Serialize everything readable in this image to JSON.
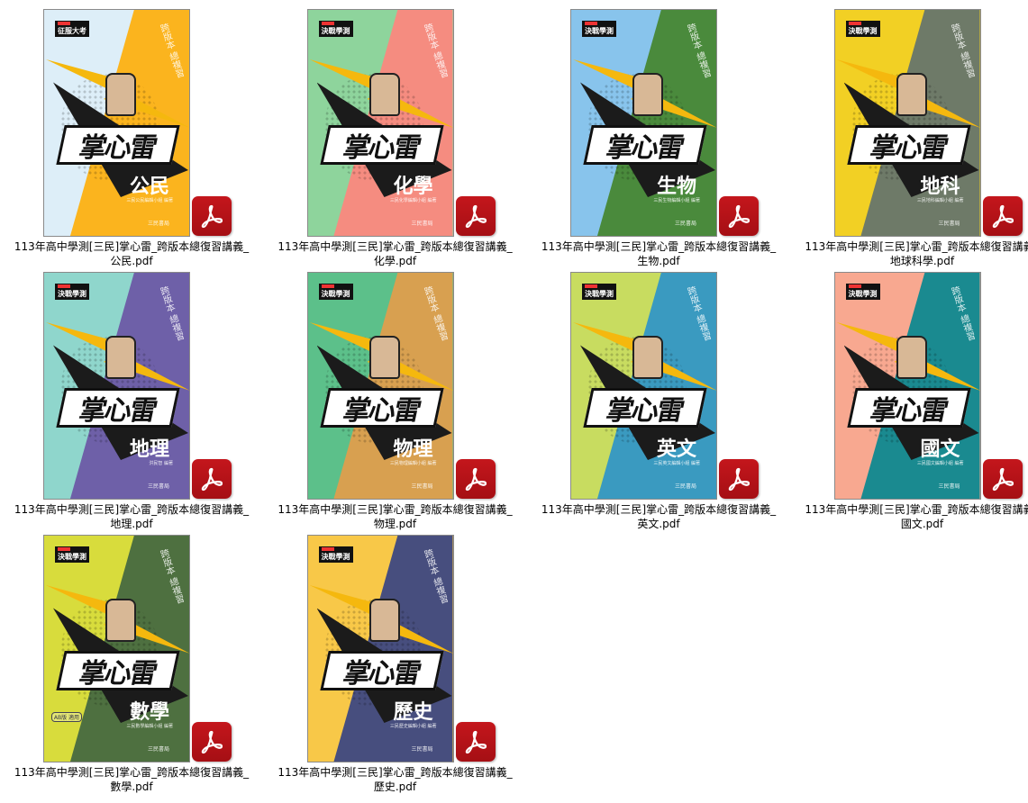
{
  "common": {
    "logo": "掌心雷",
    "slogan": "跨版本 總複習",
    "publisher": "三民書局",
    "file_prefix": "113年高中學測[三民]掌心雷_跨版本總復習講義_"
  },
  "files": [
    {
      "name": "公民.pdf",
      "subject": "公民",
      "badge": "征服大考",
      "author": "三民公民編輯小組 編著",
      "colors": [
        "#ddeef8",
        "#fbb41e"
      ]
    },
    {
      "name": "化學.pdf",
      "subject": "化學",
      "badge": "決戰學測",
      "author": "三民化學編輯小組 編著",
      "colors": [
        "#8ed49c",
        "#f58c80"
      ]
    },
    {
      "name": "生物.pdf",
      "subject": "生物",
      "badge": "決戰學測",
      "author": "三民生物編輯小組 編著",
      "colors": [
        "#88c4ec",
        "#4a8a3c"
      ]
    },
    {
      "name": "地球科學.pdf",
      "subject": "地科",
      "badge": "決戰學測",
      "author": "三民地科編輯小組 編著",
      "colors": [
        "#f2d024",
        "#6e7a68"
      ]
    },
    {
      "name": "地理.pdf",
      "subject": "地理",
      "badge": "決戰學測",
      "author": "洪民智 編著",
      "colors": [
        "#8fd6cc",
        "#6e60a8"
      ]
    },
    {
      "name": "物理.pdf",
      "subject": "物理",
      "badge": "決戰學測",
      "author": "三民物理編輯小組 編著",
      "colors": [
        "#5cc08a",
        "#d8a050"
      ]
    },
    {
      "name": "英文.pdf",
      "subject": "英文",
      "badge": "決戰學測",
      "author": "三民英文編輯小組 編著",
      "colors": [
        "#c8dc60",
        "#3a9ac0"
      ]
    },
    {
      "name": "國文.pdf",
      "subject": "國文",
      "badge": "決戰學測",
      "author": "三民國文編輯小組 編著",
      "colors": [
        "#f8a890",
        "#1a8a90"
      ]
    },
    {
      "name": "數學.pdf",
      "subject": "數學",
      "badge": "決戰學測",
      "author": "三民數學編輯小組 編著",
      "colors": [
        "#d8dc3c",
        "#4e7040"
      ],
      "extra": "AB版 適用"
    },
    {
      "name": "歷史.pdf",
      "subject": "歷史",
      "badge": "決戰學測",
      "author": "三民歷史編輯小組 編著",
      "colors": [
        "#f8c848",
        "#474e7e"
      ]
    }
  ]
}
